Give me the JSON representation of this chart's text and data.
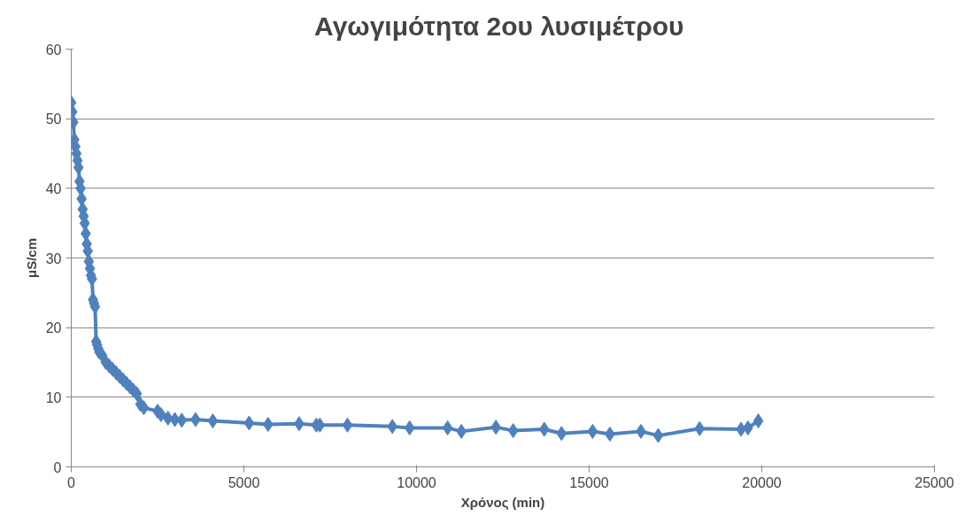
{
  "chart_data": {
    "type": "line",
    "title": "Αγωγιμότητα  2ου λυσιμέτρου",
    "xlabel": "Χρόνος (min)",
    "ylabel": "μS/cm",
    "x": [
      0,
      30,
      60,
      90,
      120,
      150,
      180,
      210,
      240,
      270,
      300,
      330,
      360,
      390,
      420,
      450,
      480,
      510,
      540,
      570,
      600,
      630,
      660,
      690,
      720,
      750,
      780,
      810,
      900,
      1000,
      1100,
      1200,
      1300,
      1400,
      1500,
      1600,
      1700,
      1800,
      1900,
      2000,
      2100,
      2500,
      2600,
      2800,
      3000,
      3200,
      3600,
      4100,
      5150,
      5700,
      6600,
      7100,
      7200,
      8000,
      9300,
      9800,
      10900,
      11300,
      12300,
      12800,
      13700,
      14200,
      15100,
      15600,
      16500,
      17000,
      18200,
      19400,
      19600,
      19900
    ],
    "series": [
      {
        "color": "#4f81bd",
        "values": [
          52.3,
          51,
          49.5,
          47,
          46,
          45,
          44,
          43,
          41,
          40,
          38.5,
          37,
          36,
          35,
          33.5,
          32,
          31,
          29.5,
          28.5,
          27.5,
          27,
          24,
          23.5,
          23,
          18,
          17.5,
          17,
          16.5,
          16,
          15,
          14.5,
          14,
          13.5,
          13,
          12.5,
          12,
          11.5,
          11,
          10.5,
          9,
          8.5,
          8,
          7.5,
          7,
          6.8,
          6.7,
          6.8,
          6.6,
          6.3,
          6.1,
          6.2,
          6.0,
          6.0,
          6.0,
          5.8,
          5.6,
          5.6,
          5.1,
          5.7,
          5.2,
          5.4,
          4.8,
          5.1,
          4.7,
          5.1,
          4.5,
          5.5,
          5.4,
          5.6,
          6.6
        ]
      }
    ],
    "xlim": [
      0,
      25000
    ],
    "xticks": [
      0,
      5000,
      10000,
      15000,
      20000,
      25000
    ],
    "ylim": [
      0,
      60
    ],
    "yticks": [
      0,
      10,
      20,
      30,
      40,
      50,
      60
    ],
    "grid": "y",
    "marker": "diamond",
    "line_style": "solid"
  }
}
